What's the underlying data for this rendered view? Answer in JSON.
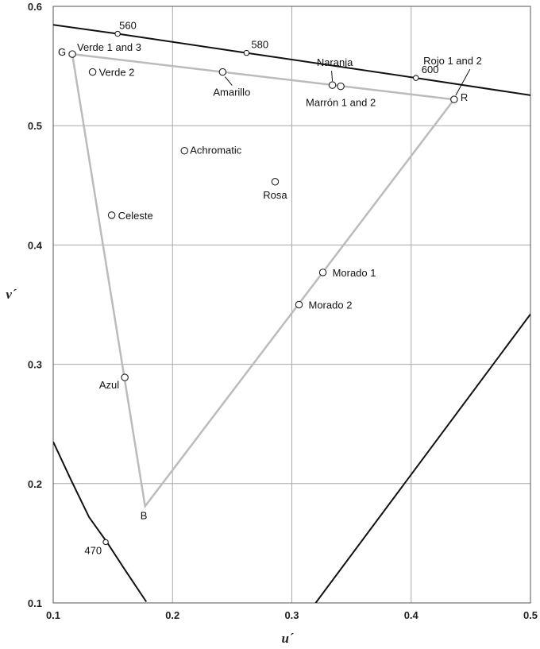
{
  "chart_data": {
    "type": "scatter",
    "title": "",
    "xlabel": "u´",
    "ylabel": "v´",
    "xlim": [
      0.1,
      0.5
    ],
    "ylim": [
      0.1,
      0.6
    ],
    "xticks": [
      "0.1",
      "0.2",
      "0.3",
      "0.4",
      "0.5"
    ],
    "yticks": [
      "0.1",
      "0.2",
      "0.3",
      "0.4",
      "0.5",
      "0.6"
    ],
    "grid": true,
    "legend": "none",
    "colors": {
      "spectral": "#111111",
      "triangle": "#bbbbbb",
      "grid": "#a8a8a8",
      "frame": "#555555"
    },
    "spectral_locus_upper": [
      [
        0.1,
        0.5845
      ],
      [
        0.154,
        0.577
      ],
      [
        0.262,
        0.561
      ],
      [
        0.404,
        0.54
      ],
      [
        0.5,
        0.5255
      ]
    ],
    "spectral_locus_left": [
      [
        0.1,
        0.235
      ],
      [
        0.115,
        0.203
      ],
      [
        0.13,
        0.172
      ],
      [
        0.145,
        0.151
      ],
      [
        0.16,
        0.128
      ],
      [
        0.178,
        0.101
      ]
    ],
    "purple_line": [
      [
        0.32,
        0.1
      ],
      [
        0.5,
        0.342
      ]
    ],
    "wavelength_marks": [
      {
        "label": "560",
        "u": 0.154,
        "v": 0.577
      },
      {
        "label": "580",
        "u": 0.262,
        "v": 0.561
      },
      {
        "label": "600",
        "u": 0.404,
        "v": 0.54
      },
      {
        "label": "470",
        "u": 0.144,
        "v": 0.151
      }
    ],
    "gamut_triangle": [
      {
        "label": "G",
        "u": 0.116,
        "v": 0.56
      },
      {
        "label": "R",
        "u": 0.436,
        "v": 0.522
      },
      {
        "label": "B",
        "u": 0.177,
        "v": 0.181
      }
    ],
    "points": [
      {
        "label": "Verde 1 and 3",
        "u": 0.116,
        "v": 0.56
      },
      {
        "label": "Verde 2",
        "u": 0.133,
        "v": 0.545
      },
      {
        "label": "Amarillo",
        "u": 0.242,
        "v": 0.545
      },
      {
        "label": "Naranja",
        "u": 0.334,
        "v": 0.534
      },
      {
        "label": "Marrón 1 and 2",
        "u": 0.341,
        "v": 0.533
      },
      {
        "label": "Rojo 1 and 2",
        "u": 0.436,
        "v": 0.522
      },
      {
        "label": "Achromatic",
        "u": 0.21,
        "v": 0.479
      },
      {
        "label": "Rosa",
        "u": 0.286,
        "v": 0.453
      },
      {
        "label": "Celeste",
        "u": 0.149,
        "v": 0.425
      },
      {
        "label": "Morado 1",
        "u": 0.326,
        "v": 0.377
      },
      {
        "label": "Morado 2",
        "u": 0.306,
        "v": 0.35
      },
      {
        "label": "Azul",
        "u": 0.16,
        "v": 0.289
      }
    ]
  }
}
